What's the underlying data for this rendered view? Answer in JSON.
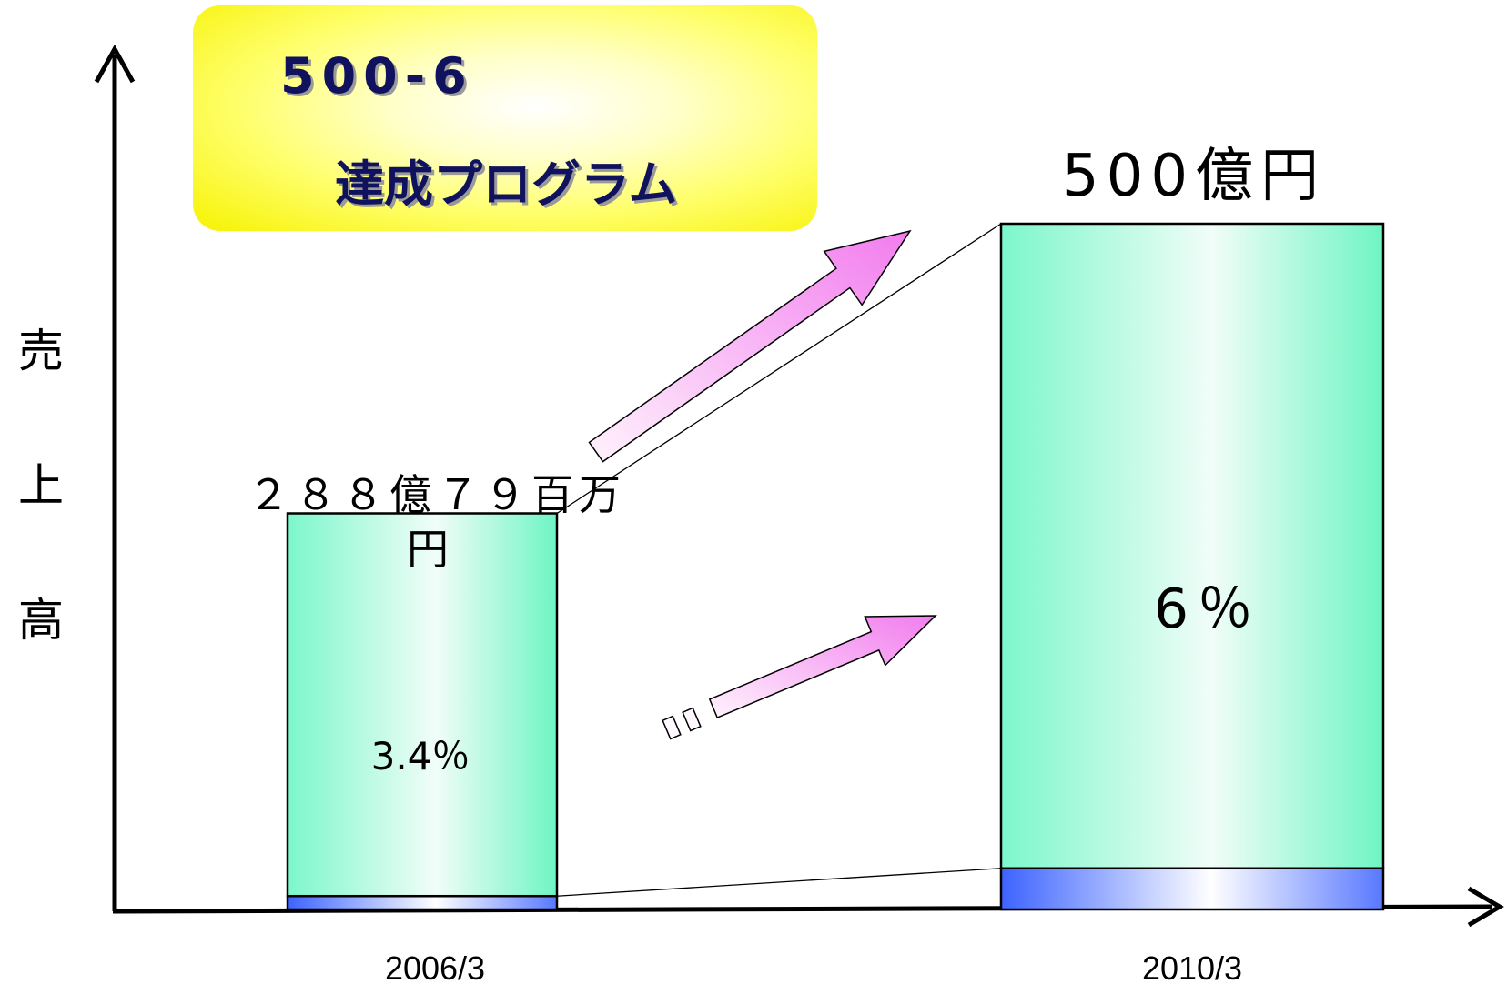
{
  "title": {
    "line1": "500-6",
    "line2": "達成プログラム"
  },
  "chart_data": {
    "type": "bar",
    "stacked": true,
    "ylabel": "売上高",
    "ylabel_chars": [
      "売",
      "上",
      "高"
    ],
    "xlabel": "",
    "categories": [
      "2006/3",
      "2010/3"
    ],
    "totals": [
      288.79,
      500
    ],
    "total_labels": [
      "２８８億７９百万円",
      "500億円"
    ],
    "share_labels": [
      "3.4％",
      "6％"
    ],
    "series": [
      {
        "values": [
          9.8,
          30
        ],
        "color_dark": "#3c63ff",
        "color_light": "#ffffff"
      },
      {
        "values": [
          278.99,
          470
        ],
        "color_dark": "#7cf7cc",
        "color_light": "#eefdf6"
      }
    ],
    "ylim": [
      0,
      520
    ],
    "legend": "none",
    "grid": false,
    "arrow_color": "#f47ff0"
  }
}
